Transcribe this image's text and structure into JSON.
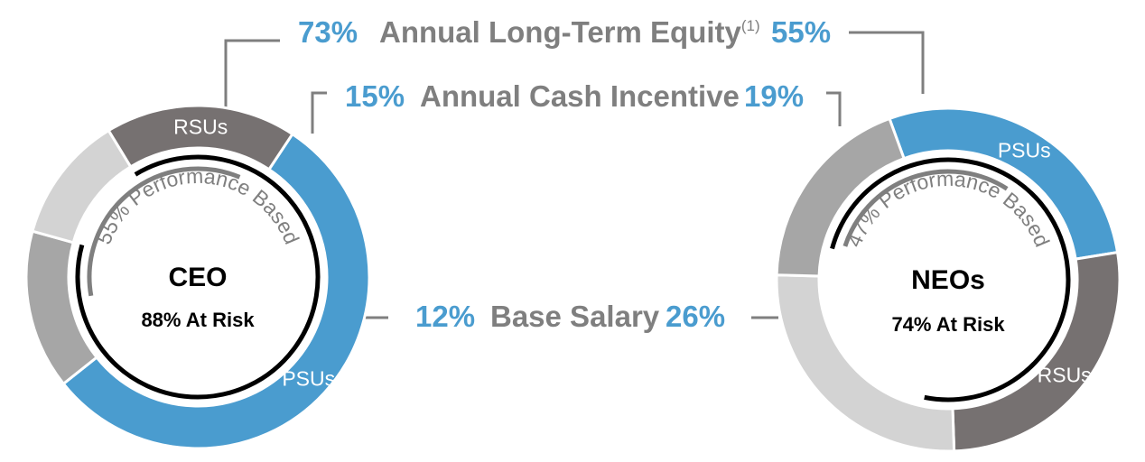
{
  "chart_data": {
    "type": "pie",
    "colors": {
      "psu": "#4a9ccf",
      "cash": "#a6a6a6",
      "salary": "#d3d3d3",
      "rsu": "#767171",
      "percent_text": "#4a9ccf",
      "category_text": "#7f7f7f"
    },
    "categories": [
      {
        "name": "Annual Long-Term Equity",
        "superscript": "(1)",
        "ceo": "73%",
        "neo": "55%"
      },
      {
        "name": "Annual Cash Incentive",
        "ceo": "15%",
        "neo": "19%"
      },
      {
        "name": "Base Salary",
        "ceo": "12%",
        "neo": "26%"
      }
    ],
    "charts": [
      {
        "id": "ceo",
        "title": "CEO",
        "at_risk_label": "88% At Risk",
        "at_risk_value": 88,
        "performance_label": "55% Performance Based",
        "performance_value": 55,
        "segments": [
          {
            "key": "psu",
            "label": "PSUs",
            "value": 55
          },
          {
            "key": "cash",
            "label": "",
            "value": 15
          },
          {
            "key": "salary",
            "label": "",
            "value": 12
          },
          {
            "key": "rsu",
            "label": "RSUs",
            "value": 18
          }
        ]
      },
      {
        "id": "neo",
        "title": "NEOs",
        "at_risk_label": "74% At Risk",
        "at_risk_value": 74,
        "performance_label": "47% Performance Based",
        "performance_value": 47,
        "segments": [
          {
            "key": "psu",
            "label": "PSUs",
            "value": 28
          },
          {
            "key": "rsu",
            "label": "RSUs",
            "value": 27
          },
          {
            "key": "salary",
            "label": "",
            "value": 26
          },
          {
            "key": "cash",
            "label": "",
            "value": 19
          }
        ]
      }
    ]
  }
}
